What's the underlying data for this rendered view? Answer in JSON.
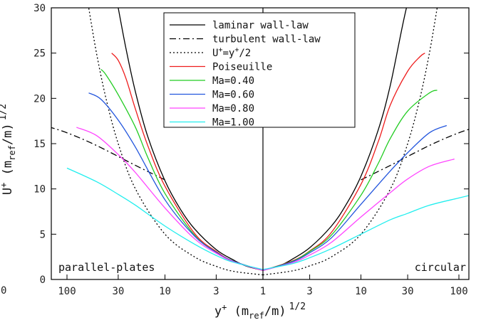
{
  "chart_data": {
    "type": "line",
    "title": "",
    "xlabel": {
      "base": "y",
      "sup": "+",
      "mid": " (",
      "mdot": "m",
      "ref": "ref",
      "slash": "/",
      "mdot2": "m",
      "close": ")",
      "pow": "1/2"
    },
    "ylabel": {
      "base": "U",
      "sup": "+",
      "mid": " (",
      "mdot": "m",
      "ref": "ref",
      "slash": "/",
      "mdot2": "m",
      "close": ")",
      "pow": "1/2"
    },
    "x_axis": {
      "description": "mirrored log axis; left half = parallel-plates, right half = circular",
      "ticks_left": [
        100,
        30,
        10,
        3
      ],
      "tick_center": 1,
      "ticks_right": [
        3,
        10,
        30,
        100
      ]
    },
    "stray_label": "0",
    "ylim": [
      0,
      30
    ],
    "yticks": [
      0,
      5,
      10,
      15,
      20,
      25,
      30
    ],
    "grid": false,
    "legend_position": "top-center",
    "annotations": {
      "left": "parallel-plates",
      "right": "circular"
    },
    "series": [
      {
        "name": "laminar wall-law",
        "color": "#000000",
        "style": "solid",
        "left": [
          [
            1,
            1
          ],
          [
            1.5,
            1.5
          ],
          [
            2,
            2.15
          ],
          [
            3,
            3.3
          ],
          [
            5,
            5.6
          ],
          [
            7,
            7.8
          ],
          [
            10,
            10.9
          ],
          [
            15,
            15.8
          ],
          [
            20,
            20.7
          ],
          [
            25,
            25.5
          ],
          [
            30,
            30
          ]
        ],
        "right": [
          [
            1,
            1
          ],
          [
            1.5,
            1.55
          ],
          [
            2,
            2.25
          ],
          [
            3,
            3.5
          ],
          [
            5,
            5.9
          ],
          [
            7,
            8.2
          ],
          [
            10,
            11.4
          ],
          [
            15,
            16.5
          ],
          [
            20,
            21.5
          ],
          [
            30,
            30.5
          ],
          [
            35,
            30
          ]
        ]
      },
      {
        "name": "turbulent wall-law",
        "color": "#000000",
        "style": "dashdot",
        "left": [
          [
            10,
            11.0
          ],
          [
            20,
            12.6
          ],
          [
            50,
            14.8
          ],
          [
            100,
            16.2
          ],
          [
            170,
            17.0
          ]
        ],
        "right": [
          [
            10,
            11.0
          ],
          [
            20,
            12.6
          ],
          [
            50,
            14.8
          ],
          [
            100,
            16.2
          ],
          [
            170,
            17.0
          ]
        ]
      },
      {
        "name": "U+=y+/2",
        "color": "#000000",
        "style": "dotted",
        "left": [
          [
            1,
            0.5
          ],
          [
            2,
            0.9
          ],
          [
            3,
            1.45
          ],
          [
            5,
            2.5
          ],
          [
            10,
            5.0
          ],
          [
            20,
            10
          ],
          [
            30,
            15
          ],
          [
            40,
            20
          ],
          [
            50,
            25
          ],
          [
            60,
            30
          ]
        ],
        "right": [
          [
            1,
            0.5
          ],
          [
            2,
            0.95
          ],
          [
            3,
            1.5
          ],
          [
            5,
            2.5
          ],
          [
            10,
            5.0
          ],
          [
            20,
            10
          ],
          [
            30,
            15
          ],
          [
            40,
            20
          ],
          [
            50,
            25
          ],
          [
            60,
            30
          ]
        ]
      },
      {
        "name": "Poiseuille",
        "color": "#ee1c1c",
        "style": "solid",
        "left": [
          [
            1,
            1
          ],
          [
            2,
            2.0
          ],
          [
            3,
            3.1
          ],
          [
            5,
            5.1
          ],
          [
            10,
            10.3
          ],
          [
            15,
            14.8
          ],
          [
            20,
            18.8
          ],
          [
            25,
            22.2
          ],
          [
            30,
            24.2
          ],
          [
            35,
            25.0
          ]
        ],
        "right": [
          [
            1,
            1
          ],
          [
            2,
            2.05
          ],
          [
            3,
            3.15
          ],
          [
            5,
            5.2
          ],
          [
            10,
            10.5
          ],
          [
            15,
            15.2
          ],
          [
            20,
            19.3
          ],
          [
            30,
            23.0
          ],
          [
            40,
            24.6
          ],
          [
            45,
            25.0
          ]
        ]
      },
      {
        "name": "Ma=0.40",
        "color": "#22cc22",
        "style": "solid",
        "left": [
          [
            1,
            1
          ],
          [
            2,
            2.0
          ],
          [
            3,
            3.0
          ],
          [
            5,
            4.9
          ],
          [
            10,
            9.5
          ],
          [
            15,
            13.5
          ],
          [
            20,
            16.8
          ],
          [
            30,
            20.4
          ],
          [
            40,
            22.6
          ],
          [
            45,
            23.2
          ]
        ],
        "right": [
          [
            1,
            1
          ],
          [
            2,
            2.0
          ],
          [
            3,
            3.1
          ],
          [
            5,
            4.9
          ],
          [
            10,
            9.3
          ],
          [
            15,
            12.8
          ],
          [
            20,
            15.6
          ],
          [
            30,
            18.6
          ],
          [
            50,
            20.6
          ],
          [
            60,
            20.9
          ]
        ]
      },
      {
        "name": "Ma=0.60",
        "color": "#2255dd",
        "style": "solid",
        "left": [
          [
            1,
            1
          ],
          [
            2,
            2.0
          ],
          [
            3,
            3.0
          ],
          [
            5,
            4.8
          ],
          [
            10,
            8.8
          ],
          [
            20,
            14.6
          ],
          [
            30,
            17.6
          ],
          [
            45,
            19.9
          ],
          [
            60,
            20.6
          ]
        ],
        "right": [
          [
            1,
            1
          ],
          [
            2,
            1.95
          ],
          [
            3,
            2.95
          ],
          [
            5,
            4.6
          ],
          [
            10,
            8.3
          ],
          [
            20,
            12.0
          ],
          [
            30,
            14.0
          ],
          [
            50,
            16.2
          ],
          [
            75,
            17.0
          ]
        ]
      },
      {
        "name": "Ma=0.80",
        "color": "#ff44ff",
        "style": "solid",
        "left": [
          [
            1,
            1
          ],
          [
            2,
            1.95
          ],
          [
            3,
            2.9
          ],
          [
            5,
            4.5
          ],
          [
            10,
            7.9
          ],
          [
            20,
            11.8
          ],
          [
            30,
            13.8
          ],
          [
            50,
            15.9
          ],
          [
            80,
            16.8
          ]
        ],
        "right": [
          [
            1,
            1
          ],
          [
            2,
            1.85
          ],
          [
            3,
            2.7
          ],
          [
            5,
            4.1
          ],
          [
            10,
            6.9
          ],
          [
            20,
            9.6
          ],
          [
            30,
            11.1
          ],
          [
            50,
            12.5
          ],
          [
            90,
            13.3
          ]
        ]
      },
      {
        "name": "Ma=1.00",
        "color": "#22eeee",
        "style": "solid",
        "left": [
          [
            1,
            1.1
          ],
          [
            2,
            1.9
          ],
          [
            3,
            2.65
          ],
          [
            5,
            3.9
          ],
          [
            10,
            5.9
          ],
          [
            20,
            8.2
          ],
          [
            30,
            9.4
          ],
          [
            50,
            10.8
          ],
          [
            100,
            12.3
          ]
        ],
        "right": [
          [
            1,
            1.1
          ],
          [
            2,
            1.75
          ],
          [
            3,
            2.4
          ],
          [
            5,
            3.4
          ],
          [
            10,
            5.0
          ],
          [
            20,
            6.6
          ],
          [
            30,
            7.3
          ],
          [
            50,
            8.2
          ],
          [
            100,
            9.0
          ],
          [
            130,
            9.3
          ]
        ]
      }
    ]
  }
}
